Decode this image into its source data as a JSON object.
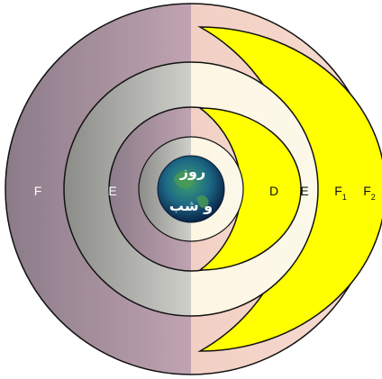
{
  "diagram": {
    "night_labels": [
      "F",
      "E"
    ],
    "earth_label_top": "روز",
    "earth_label_bottom": "و شب",
    "day_labels": {
      "d": "D",
      "e": "E",
      "f1_main": "F",
      "f1_sub": "1",
      "f2_main": "F",
      "f2_sub": "2"
    },
    "colors": {
      "night_outer": "#8e7e8b",
      "night_mid": "#8d8d8b",
      "day_outer": "#f4d6c8",
      "day_mid": "#fbf7e4",
      "crescent_fill": "#ffff00",
      "crescent_edge": "#111111"
    }
  }
}
